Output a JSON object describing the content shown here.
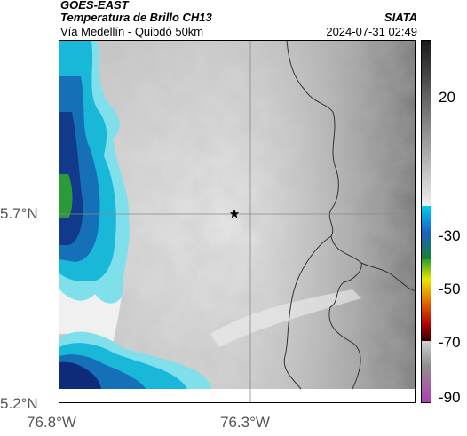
{
  "header": {
    "satellite": "GOES-EAST",
    "product": "Temperatura de Brillo CH13",
    "route": "Vía Medellín - Quibdó 50km",
    "agency": "SIATA",
    "datetime": "2024-07-31 02:49"
  },
  "axes": {
    "lat_ticks": [
      "5.7°N",
      "5.2°N"
    ],
    "lon_ticks": [
      "76.8°W",
      "76.3°W"
    ]
  },
  "colorbar": {
    "ticks": [
      "20",
      "-30",
      "-50",
      "-70",
      "-90"
    ],
    "colors": [
      "#1a1a1a",
      "#707070",
      "#d8d8d8",
      "#00c8e0",
      "#1a5ac8",
      "#1fa030",
      "#e8e800",
      "#e06000",
      "#c00000",
      "#400000",
      "#c8c8c8",
      "#b040b0"
    ]
  },
  "map": {
    "marker_icon": "star-icon"
  }
}
